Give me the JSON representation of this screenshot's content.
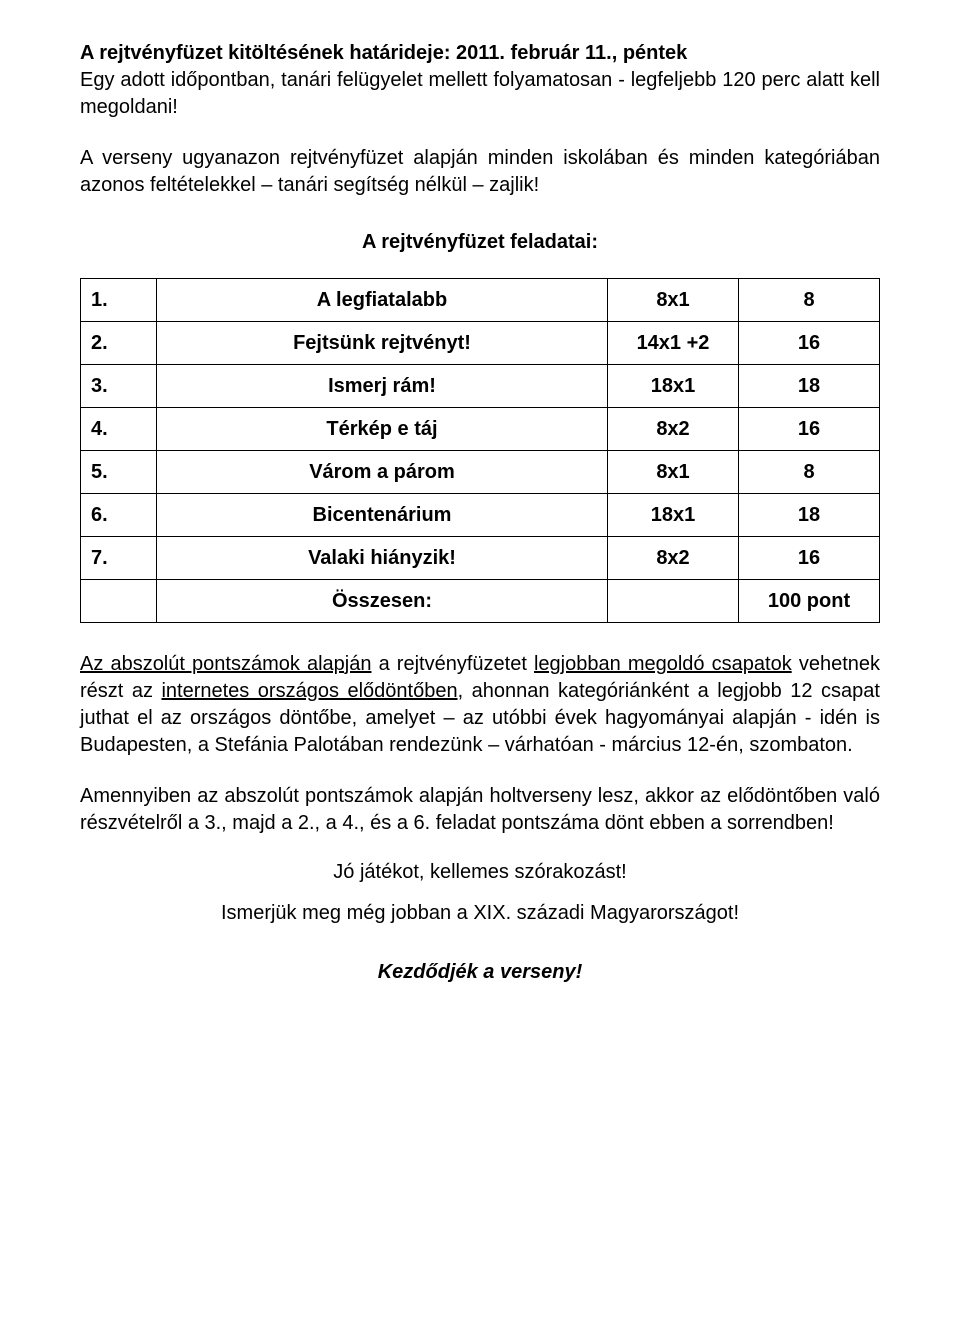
{
  "intro": {
    "p1_a": "A rejtvényfüzet kitöltésének határideje: 2011. február 11., péntek",
    "p1_b": "Egy adott időpontban, tanári felügyelet mellett folyamatosan - legfeljebb 120 perc alatt kell megoldani!",
    "p2": "A verseny ugyanazon rejtvényfüzet alapján minden iskolában és minden kategóriában azonos feltételekkel – tanári segítség nélkül – zajlik!"
  },
  "heading": "A rejtvényfüzet feladatai:",
  "table": {
    "rows": [
      {
        "num": "1.",
        "title": "A legfiatalabb",
        "size": "8x1",
        "pts": "8"
      },
      {
        "num": "2.",
        "title": "Fejtsünk rejtvényt!",
        "size": "14x1 +2",
        "pts": "16"
      },
      {
        "num": "3.",
        "title": "Ismerj rám!",
        "size": "18x1",
        "pts": "18"
      },
      {
        "num": "4.",
        "title": "Térkép e táj",
        "size": "8x2",
        "pts": "16"
      },
      {
        "num": "5.",
        "title": "Várom a párom",
        "size": "8x1",
        "pts": "8"
      },
      {
        "num": "6.",
        "title": "Bicentenárium",
        "size": "18x1",
        "pts": "18"
      },
      {
        "num": "7.",
        "title": "Valaki hiányzik!",
        "size": "8x2",
        "pts": "16"
      }
    ],
    "total_label": "Összesen:",
    "total_value": "100 pont"
  },
  "body": {
    "p3_seg1": "Az abszolút pontszámok alapján",
    "p3_seg2": " a rejtvényfüzetet ",
    "p3_seg3": "legjobban megoldó csapatok",
    "p3_seg4": " vehetnek részt az ",
    "p3_seg5": "internetes országos elődöntőben",
    "p3_seg6": ", ahonnan kategóriánként a legjobb 12 csapat juthat el az országos döntőbe, amelyet – az utóbbi évek hagyományai alapján - idén is Budapesten, a Stefánia Palotában rendezünk – várhatóan - március 12-én, szombaton.",
    "p4": "Amennyiben az abszolút pontszámok alapján holtverseny lesz, akkor az elődöntőben való részvételről a 3., majd a 2., a 4., és a 6. feladat pontszáma dönt ebben a sorrendben!"
  },
  "footer": {
    "l1": "Jó játékot, kellemes szórakozást!",
    "l2": "Ismerjük meg még jobban a XIX. századi Magyarországot!",
    "l3": "Kezdődjék a verseny!"
  }
}
